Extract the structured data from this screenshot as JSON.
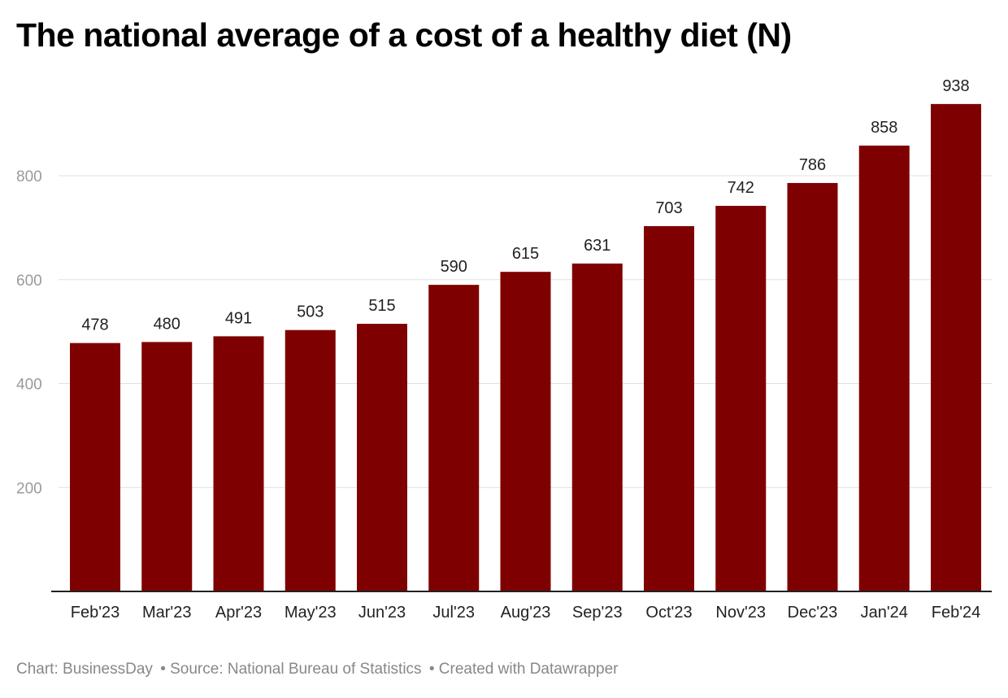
{
  "chart_data": {
    "type": "bar",
    "title": "The national average of a cost of a healthy diet (N)",
    "xlabel": "",
    "ylabel": "",
    "categories": [
      "Feb'23",
      "Mar'23",
      "Apr'23",
      "May'23",
      "Jun'23",
      "Jul'23",
      "Aug'23",
      "Sep'23",
      "Oct'23",
      "Nov'23",
      "Dec'23",
      "Jan'24",
      "Feb'24"
    ],
    "values": [
      478,
      480,
      491,
      503,
      515,
      590,
      615,
      631,
      703,
      742,
      786,
      858,
      938
    ],
    "ylim": [
      0,
      938
    ],
    "yticks": [
      200,
      400,
      600,
      800
    ],
    "grid": true,
    "bar_color": "#7f0000"
  },
  "footer": {
    "chart_credit": "Chart: BusinessDay",
    "source": "• Source: National Bureau of Statistics",
    "created": "• Created with Datawrapper"
  }
}
